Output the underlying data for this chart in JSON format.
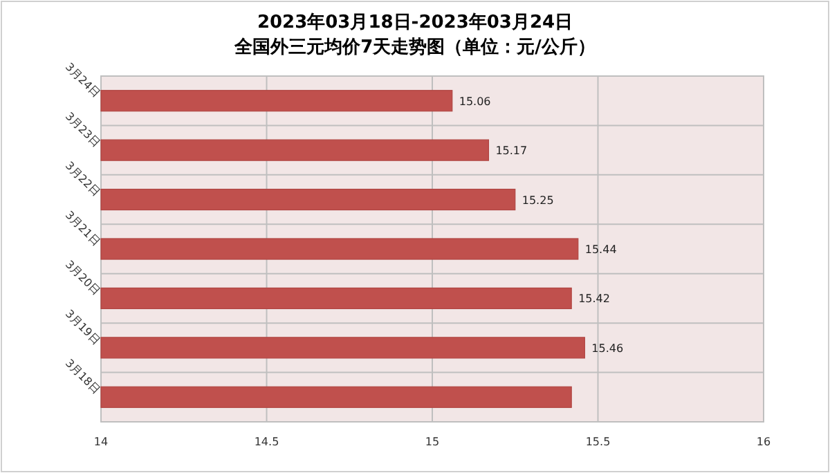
{
  "chart_data": {
    "type": "bar",
    "orientation": "horizontal",
    "title": "2023年03月18日-2023年03月24日",
    "subtitle": "全国外三元均价7天走势图（单位：元/公斤）",
    "categories": [
      "3月24日",
      "3月23日",
      "3月22日",
      "3月21日",
      "3月20日",
      "3月19日",
      "3月18日"
    ],
    "values": [
      15.06,
      15.17,
      15.25,
      15.44,
      15.42,
      15.46,
      15.42
    ],
    "value_labels": [
      "15.06",
      "15.17",
      "15.25",
      "15.44",
      "15.42",
      "15.46",
      null
    ],
    "color": "#c0504d",
    "xlim": [
      14,
      16
    ],
    "xticks": [
      14,
      14.5,
      15,
      15.5,
      16
    ],
    "grid": true
  }
}
